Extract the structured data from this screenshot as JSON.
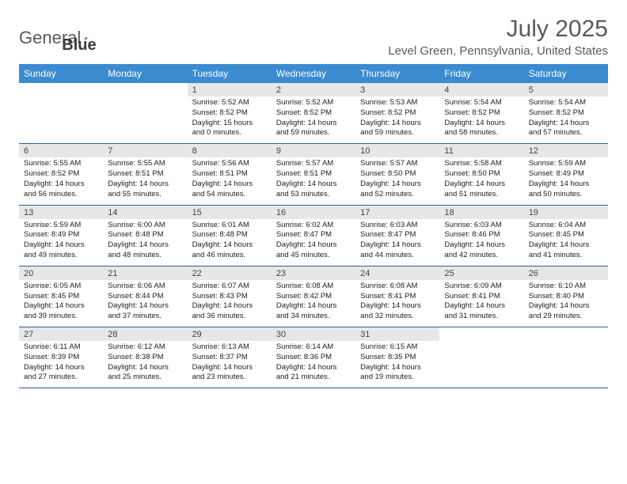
{
  "logo": {
    "text1": "General",
    "text2": "Blue"
  },
  "title": "July 2025",
  "location": "Level Green, Pennsylvania, United States",
  "colors": {
    "header_bg": "#3b8bd0",
    "daynum_bg": "#e7e7e7",
    "border": "#2a6099",
    "logo_blue": "#2a6bb0"
  },
  "day_headers": [
    "Sunday",
    "Monday",
    "Tuesday",
    "Wednesday",
    "Thursday",
    "Friday",
    "Saturday"
  ],
  "weeks": [
    [
      {
        "n": "",
        "sr": "",
        "ss": "",
        "dl": ""
      },
      {
        "n": "",
        "sr": "",
        "ss": "",
        "dl": ""
      },
      {
        "n": "1",
        "sr": "5:52 AM",
        "ss": "8:52 PM",
        "dl": "15 hours and 0 minutes."
      },
      {
        "n": "2",
        "sr": "5:52 AM",
        "ss": "8:52 PM",
        "dl": "14 hours and 59 minutes."
      },
      {
        "n": "3",
        "sr": "5:53 AM",
        "ss": "8:52 PM",
        "dl": "14 hours and 59 minutes."
      },
      {
        "n": "4",
        "sr": "5:54 AM",
        "ss": "8:52 PM",
        "dl": "14 hours and 58 minutes."
      },
      {
        "n": "5",
        "sr": "5:54 AM",
        "ss": "8:52 PM",
        "dl": "14 hours and 57 minutes."
      }
    ],
    [
      {
        "n": "6",
        "sr": "5:55 AM",
        "ss": "8:52 PM",
        "dl": "14 hours and 56 minutes."
      },
      {
        "n": "7",
        "sr": "5:55 AM",
        "ss": "8:51 PM",
        "dl": "14 hours and 55 minutes."
      },
      {
        "n": "8",
        "sr": "5:56 AM",
        "ss": "8:51 PM",
        "dl": "14 hours and 54 minutes."
      },
      {
        "n": "9",
        "sr": "5:57 AM",
        "ss": "8:51 PM",
        "dl": "14 hours and 53 minutes."
      },
      {
        "n": "10",
        "sr": "5:57 AM",
        "ss": "8:50 PM",
        "dl": "14 hours and 52 minutes."
      },
      {
        "n": "11",
        "sr": "5:58 AM",
        "ss": "8:50 PM",
        "dl": "14 hours and 51 minutes."
      },
      {
        "n": "12",
        "sr": "5:59 AM",
        "ss": "8:49 PM",
        "dl": "14 hours and 50 minutes."
      }
    ],
    [
      {
        "n": "13",
        "sr": "5:59 AM",
        "ss": "8:49 PM",
        "dl": "14 hours and 49 minutes."
      },
      {
        "n": "14",
        "sr": "6:00 AM",
        "ss": "8:48 PM",
        "dl": "14 hours and 48 minutes."
      },
      {
        "n": "15",
        "sr": "6:01 AM",
        "ss": "8:48 PM",
        "dl": "14 hours and 46 minutes."
      },
      {
        "n": "16",
        "sr": "6:02 AM",
        "ss": "8:47 PM",
        "dl": "14 hours and 45 minutes."
      },
      {
        "n": "17",
        "sr": "6:03 AM",
        "ss": "8:47 PM",
        "dl": "14 hours and 44 minutes."
      },
      {
        "n": "18",
        "sr": "6:03 AM",
        "ss": "8:46 PM",
        "dl": "14 hours and 42 minutes."
      },
      {
        "n": "19",
        "sr": "6:04 AM",
        "ss": "8:45 PM",
        "dl": "14 hours and 41 minutes."
      }
    ],
    [
      {
        "n": "20",
        "sr": "6:05 AM",
        "ss": "8:45 PM",
        "dl": "14 hours and 39 minutes."
      },
      {
        "n": "21",
        "sr": "6:06 AM",
        "ss": "8:44 PM",
        "dl": "14 hours and 37 minutes."
      },
      {
        "n": "22",
        "sr": "6:07 AM",
        "ss": "8:43 PM",
        "dl": "14 hours and 36 minutes."
      },
      {
        "n": "23",
        "sr": "6:08 AM",
        "ss": "8:42 PM",
        "dl": "14 hours and 34 minutes."
      },
      {
        "n": "24",
        "sr": "6:08 AM",
        "ss": "8:41 PM",
        "dl": "14 hours and 32 minutes."
      },
      {
        "n": "25",
        "sr": "6:09 AM",
        "ss": "8:41 PM",
        "dl": "14 hours and 31 minutes."
      },
      {
        "n": "26",
        "sr": "6:10 AM",
        "ss": "8:40 PM",
        "dl": "14 hours and 29 minutes."
      }
    ],
    [
      {
        "n": "27",
        "sr": "6:11 AM",
        "ss": "8:39 PM",
        "dl": "14 hours and 27 minutes."
      },
      {
        "n": "28",
        "sr": "6:12 AM",
        "ss": "8:38 PM",
        "dl": "14 hours and 25 minutes."
      },
      {
        "n": "29",
        "sr": "6:13 AM",
        "ss": "8:37 PM",
        "dl": "14 hours and 23 minutes."
      },
      {
        "n": "30",
        "sr": "6:14 AM",
        "ss": "8:36 PM",
        "dl": "14 hours and 21 minutes."
      },
      {
        "n": "31",
        "sr": "6:15 AM",
        "ss": "8:35 PM",
        "dl": "14 hours and 19 minutes."
      },
      {
        "n": "",
        "sr": "",
        "ss": "",
        "dl": ""
      },
      {
        "n": "",
        "sr": "",
        "ss": "",
        "dl": ""
      }
    ]
  ],
  "labels": {
    "sunrise": "Sunrise: ",
    "sunset": "Sunset: ",
    "daylight": "Daylight: "
  }
}
